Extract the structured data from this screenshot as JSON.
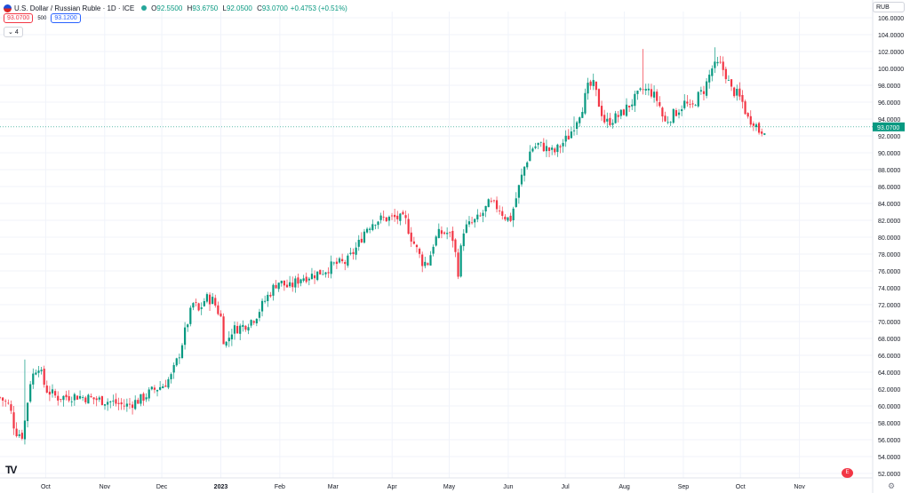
{
  "header": {
    "symbol_title": "U.S. Dollar / Russian Ruble · 1D · ICE",
    "ohlc": [
      {
        "k": "O",
        "v": "92.5500"
      },
      {
        "k": "H",
        "v": "93.6750"
      },
      {
        "k": "L",
        "v": "92.0500"
      },
      {
        "k": "C",
        "v": "93.0700"
      }
    ],
    "change": "+0.4753 (+0.51%)"
  },
  "trade": {
    "sell": "93.0700",
    "spread": "500",
    "buy": "93.1200"
  },
  "indicators_toggle": "4",
  "currency": "RUB",
  "last_price_label": "93.0700",
  "logo_text": "TV",
  "events_icon_text": "E",
  "gear_glyph": "⚙",
  "colors": {
    "up": "#089981",
    "down": "#f23645",
    "grid": "#f0f3fa",
    "text": "#131722",
    "axis_text": "#131722"
  },
  "chart_data": {
    "type": "candlestick",
    "title": "U.S. Dollar / Russian Ruble · 1D · ICE",
    "xlabel": "",
    "ylabel": "",
    "ylim": [
      51.0,
      107.0
    ],
    "y_ticks": [
      "52.0000",
      "54.0000",
      "56.0000",
      "58.0000",
      "60.0000",
      "62.0000",
      "64.0000",
      "66.0000",
      "68.0000",
      "70.0000",
      "72.0000",
      "74.0000",
      "76.0000",
      "78.0000",
      "80.0000",
      "82.0000",
      "84.0000",
      "86.0000",
      "88.0000",
      "90.0000",
      "92.0000",
      "94.0000",
      "96.0000",
      "98.0000",
      "100.0000",
      "102.0000",
      "104.0000",
      "106.0000"
    ],
    "x_ticks": [
      {
        "label": "Oct",
        "day": 24
      },
      {
        "label": "Nov",
        "day": 55
      },
      {
        "label": "Dec",
        "day": 85
      },
      {
        "label": "2023",
        "day": 116
      },
      {
        "label": "Feb",
        "day": 147
      },
      {
        "label": "Mar",
        "day": 175
      },
      {
        "label": "Apr",
        "day": 206
      },
      {
        "label": "May",
        "day": 236
      },
      {
        "label": "Jun",
        "day": 267
      },
      {
        "label": "Jul",
        "day": 297
      },
      {
        "label": "Aug",
        "day": 328
      },
      {
        "label": "Sep",
        "day": 359
      },
      {
        "label": "Oct",
        "day": 389
      },
      {
        "label": "Nov",
        "day": 420
      }
    ],
    "x_range_days": [
      0,
      447
    ],
    "grid": true,
    "last_price": 93.07,
    "price_path": [
      [
        0,
        61.0
      ],
      [
        5,
        60.0
      ],
      [
        8,
        57.0
      ],
      [
        12,
        56.5
      ],
      [
        16,
        63.0
      ],
      [
        20,
        65.0
      ],
      [
        24,
        62.0
      ],
      [
        30,
        61.0
      ],
      [
        40,
        61.2
      ],
      [
        50,
        60.8
      ],
      [
        58,
        60.5
      ],
      [
        66,
        60.0
      ],
      [
        74,
        60.8
      ],
      [
        80,
        61.8
      ],
      [
        86,
        62.5
      ],
      [
        90,
        63.5
      ],
      [
        94,
        66.0
      ],
      [
        98,
        69.5
      ],
      [
        102,
        72.5
      ],
      [
        104,
        71.0
      ],
      [
        108,
        72.8
      ],
      [
        112,
        72.5
      ],
      [
        116,
        70.5
      ],
      [
        118,
        67.0
      ],
      [
        122,
        69.0
      ],
      [
        128,
        69.5
      ],
      [
        134,
        70.5
      ],
      [
        140,
        72.8
      ],
      [
        146,
        74.8
      ],
      [
        152,
        74.0
      ],
      [
        158,
        75.2
      ],
      [
        164,
        75.5
      ],
      [
        170,
        76.0
      ],
      [
        176,
        76.8
      ],
      [
        182,
        77.0
      ],
      [
        188,
        79.0
      ],
      [
        192,
        81.0
      ],
      [
        197,
        82.0
      ],
      [
        202,
        82.2
      ],
      [
        208,
        82.3
      ],
      [
        213,
        82.0
      ],
      [
        216,
        80.0
      ],
      [
        219,
        78.5
      ],
      [
        222,
        77.0
      ],
      [
        225,
        77.0
      ],
      [
        228,
        79.5
      ],
      [
        231,
        80.5
      ],
      [
        235,
        80.5
      ],
      [
        238,
        79.8
      ],
      [
        241,
        75.5
      ],
      [
        243,
        80.8
      ],
      [
        247,
        81.5
      ],
      [
        252,
        82.3
      ],
      [
        257,
        84.0
      ],
      [
        262,
        83.5
      ],
      [
        265,
        82.5
      ],
      [
        268,
        82.0
      ],
      [
        271,
        84.5
      ],
      [
        275,
        88.0
      ],
      [
        279,
        90.5
      ],
      [
        283,
        91.0
      ],
      [
        287,
        90.5
      ],
      [
        291,
        90.0
      ],
      [
        295,
        91.0
      ],
      [
        299,
        92.0
      ],
      [
        302,
        93.5
      ],
      [
        306,
        95.5
      ],
      [
        309,
        97.8
      ],
      [
        312,
        98.0
      ],
      [
        315,
        95.5
      ],
      [
        318,
        93.5
      ],
      [
        322,
        94.0
      ],
      [
        326,
        94.5
      ],
      [
        330,
        95.5
      ],
      [
        334,
        96.5
      ],
      [
        338,
        97.5
      ],
      [
        342,
        97.2
      ],
      [
        346,
        96.0
      ],
      [
        349,
        93.5
      ],
      [
        352,
        94.2
      ],
      [
        356,
        95.0
      ],
      [
        360,
        96.0
      ],
      [
        363,
        95.0
      ],
      [
        366,
        96.5
      ],
      [
        370,
        97.5
      ],
      [
        374,
        100.0
      ],
      [
        378,
        100.5
      ],
      [
        381,
        99.5
      ],
      [
        384,
        97.5
      ],
      [
        387,
        97.0
      ],
      [
        390,
        96.0
      ],
      [
        393,
        94.0
      ],
      [
        396,
        93.8
      ],
      [
        399,
        92.5
      ],
      [
        402,
        93.0
      ]
    ],
    "notable_highs": [
      {
        "day": 339,
        "high": 102.3
      },
      {
        "day": 376,
        "high": 102.5
      },
      {
        "day": 302,
        "high": 94.3
      },
      {
        "day": 14,
        "high": 65.5
      }
    ]
  }
}
